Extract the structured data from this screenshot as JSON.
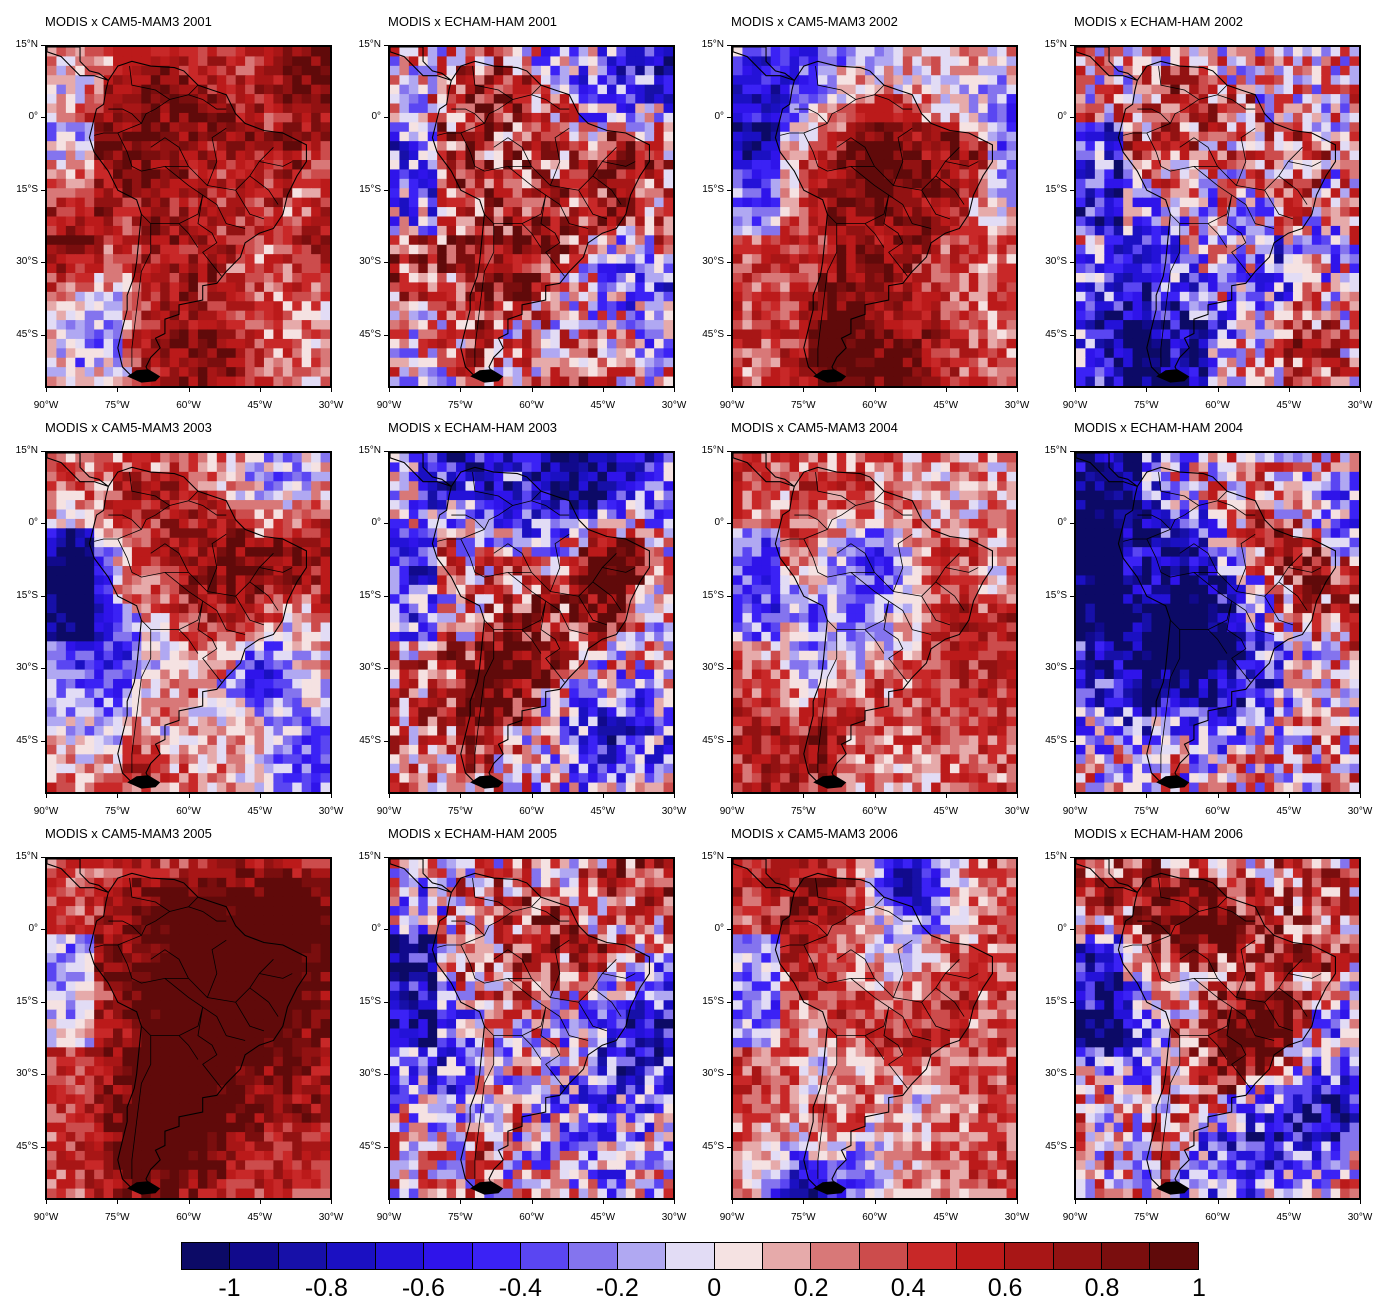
{
  "panels": [
    {
      "title": "MODIS x CAM5-MAM3 2001",
      "model": "cam",
      "seed": 11
    },
    {
      "title": "MODIS x ECHAM-HAM 2001",
      "model": "echam",
      "seed": 23
    },
    {
      "title": "MODIS x CAM5-MAM3 2002",
      "model": "cam",
      "seed": 37
    },
    {
      "title": "MODIS x ECHAM-HAM 2002",
      "model": "echam",
      "seed": 41
    },
    {
      "title": "MODIS x CAM5-MAM3 2003",
      "model": "cam",
      "seed": 53
    },
    {
      "title": "MODIS x ECHAM-HAM 2003",
      "model": "echam",
      "seed": 67
    },
    {
      "title": "MODIS x CAM5-MAM3 2004",
      "model": "cam",
      "seed": 71
    },
    {
      "title": "MODIS x ECHAM-HAM 2004",
      "model": "echam",
      "seed": 83
    },
    {
      "title": "MODIS x CAM5-MAM3 2005",
      "model": "cam",
      "seed": 97
    },
    {
      "title": "MODIS x ECHAM-HAM 2005",
      "model": "echam",
      "seed": 101
    },
    {
      "title": "MODIS x CAM5-MAM3 2006",
      "model": "cam",
      "seed": 113
    },
    {
      "title": "MODIS x ECHAM-HAM 2006",
      "model": "echam",
      "seed": 127
    }
  ],
  "lat_labels": [
    "15°N",
    "0°",
    "15°S",
    "30°S",
    "45°S"
  ],
  "lon_labels": [
    "90°W",
    "75°W",
    "60°W",
    "45°W",
    "30°W"
  ],
  "colorbar": {
    "colors": [
      "#0c0a66",
      "#110a8c",
      "#1710a8",
      "#1b10c2",
      "#2412d8",
      "#2f14ea",
      "#3b22f5",
      "#5a46f2",
      "#8474ee",
      "#b0a8f2",
      "#e2dcf5",
      "#f5e2e2",
      "#e6aaaa",
      "#d87878",
      "#cc4c4c",
      "#c82828",
      "#bb1a1a",
      "#a81616",
      "#921212",
      "#7a0e0e",
      "#600a0a"
    ],
    "labels": [
      "-1",
      "-0.8",
      "-0.6",
      "-0.4",
      "-0.2",
      "0",
      "0.2",
      "0.4",
      "0.6",
      "0.8",
      "1"
    ],
    "min": -1.1,
    "max": 1.1
  }
}
